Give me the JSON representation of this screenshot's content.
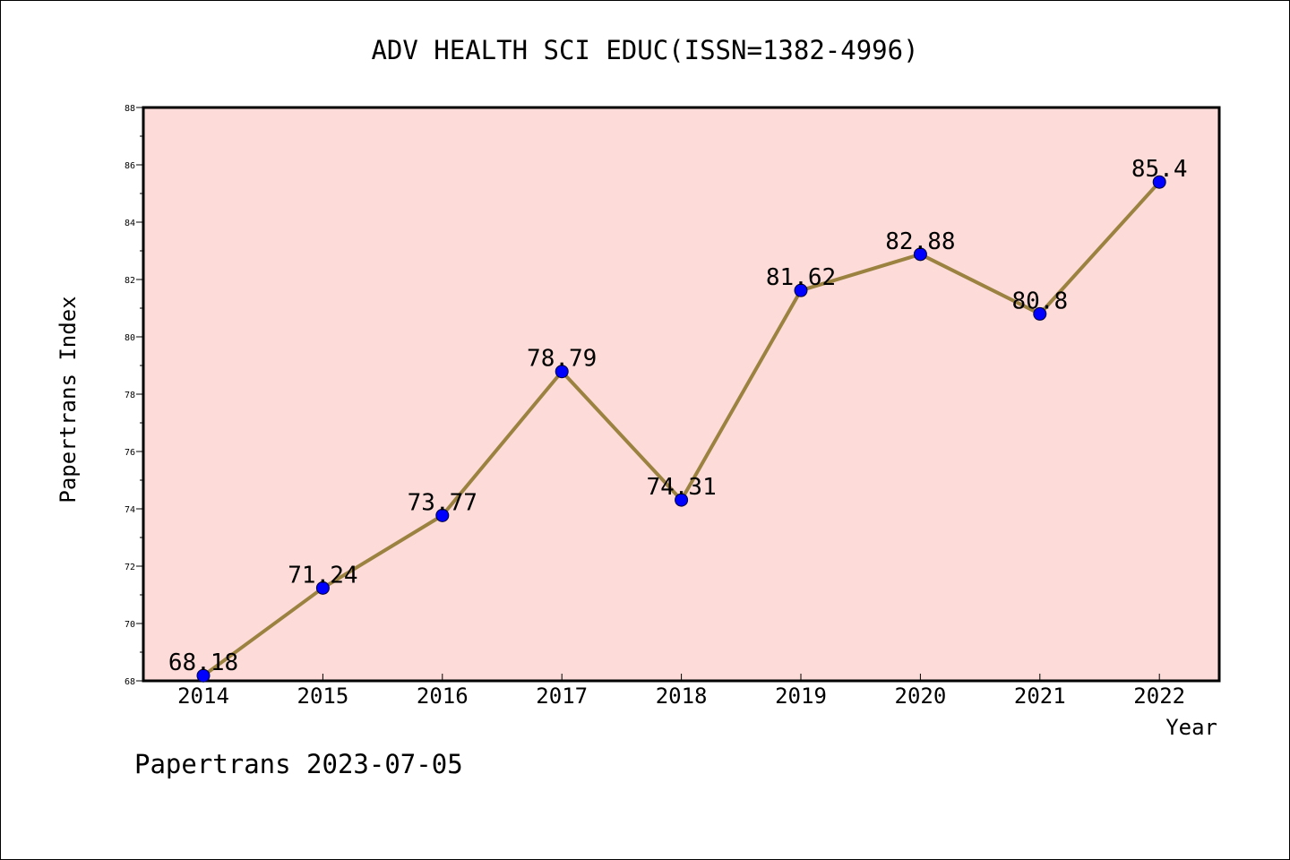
{
  "chart_data": {
    "type": "line",
    "title": "ADV HEALTH SCI EDUC(ISSN=1382-4996)",
    "xlabel": "Year",
    "ylabel": "Papertrans Index",
    "categories": [
      "2014",
      "2015",
      "2016",
      "2017",
      "2018",
      "2019",
      "2020",
      "2021",
      "2022"
    ],
    "values": [
      68.18,
      71.24,
      73.77,
      78.79,
      74.31,
      81.62,
      82.88,
      80.8,
      85.4
    ],
    "data_labels": [
      "68.18",
      "71.24",
      "73.77",
      "78.79",
      "74.31",
      "81.62",
      "82.88",
      "80.8",
      "85.4"
    ],
    "ylim": [
      68,
      88
    ],
    "yticks": [
      "68",
      "70",
      "72",
      "74",
      "76",
      "78",
      "80",
      "82",
      "84",
      "86",
      "88"
    ],
    "grid": false,
    "legend": "none",
    "colors": {
      "plot_background": "#fddbd8",
      "line": "#9b8240",
      "marker": "#0000ff"
    }
  },
  "footer": "Papertrans 2023-07-05"
}
